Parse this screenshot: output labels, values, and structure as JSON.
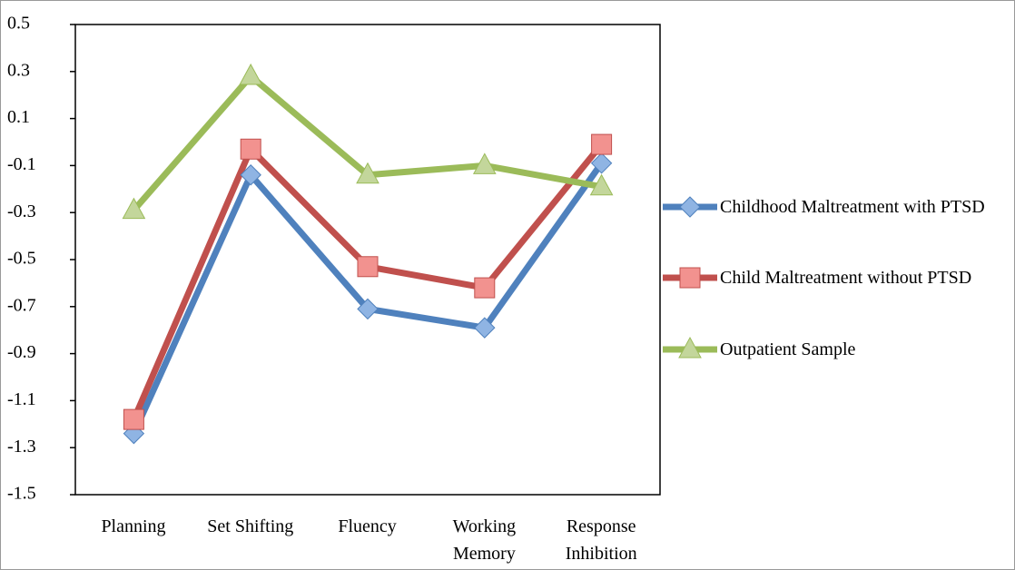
{
  "chart_data": {
    "type": "line",
    "categories": [
      "Planning",
      "Set Shifting",
      "Fluency",
      "Working Memory",
      "Response Inhibition"
    ],
    "series": [
      {
        "name": "Childhood Maltreatment with PTSD",
        "color": "#4f81bd",
        "marker": "diamond",
        "values": [
          -1.24,
          -0.14,
          -0.71,
          -0.79,
          -0.09
        ]
      },
      {
        "name": "Child Maltreatment without PTSD",
        "color": "#c0504d",
        "marker": "square",
        "values": [
          -1.18,
          -0.03,
          -0.53,
          -0.62,
          -0.01
        ]
      },
      {
        "name": "Outpatient Sample",
        "color": "#9bbb59",
        "marker": "triangle",
        "values": [
          -0.29,
          0.28,
          -0.14,
          -0.1,
          -0.19
        ]
      }
    ],
    "ylim": [
      -1.5,
      0.5
    ],
    "yticks": [
      -1.5,
      -1.3,
      -1.1,
      -0.9,
      -0.7,
      -0.5,
      -0.3,
      -0.1,
      0.1,
      0.3,
      0.5
    ],
    "legend": "right"
  }
}
